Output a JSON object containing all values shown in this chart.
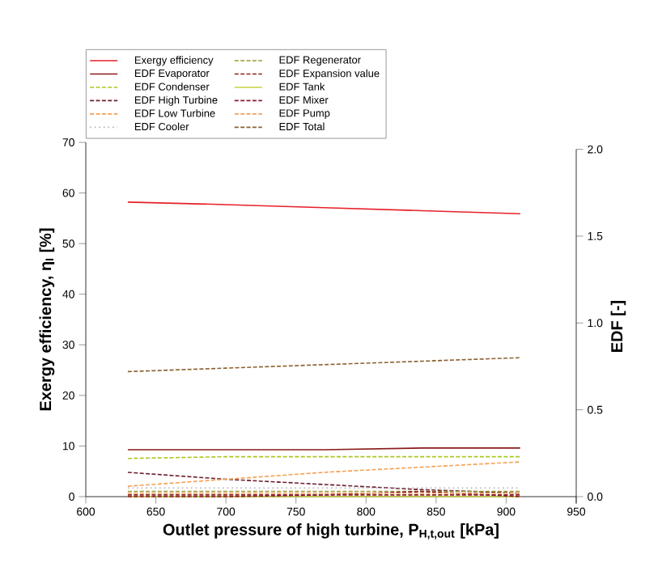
{
  "chart_data": {
    "type": "line",
    "xlabel": "Outlet pressure of high turbine, P$_{H,t,out}$ [kPa]",
    "ylabel": "Exergy efficiency, η$_{I}$ [%]",
    "y2label": "EDF [-]",
    "x": [
      630,
      700,
      770,
      840,
      910
    ],
    "xlim": [
      600,
      950
    ],
    "xticks": [
      600,
      650,
      700,
      750,
      800,
      850,
      900,
      950
    ],
    "ylim": [
      0,
      70
    ],
    "yticks": [
      0,
      10,
      20,
      30,
      40,
      50,
      60,
      70
    ],
    "y2lim": [
      -0.04,
      2.0
    ],
    "y2ticks": [
      {
        "value": 0,
        "label": "0.0"
      },
      {
        "value": 0.5,
        "label": "0.5"
      },
      {
        "value": 1,
        "label": "1.0"
      },
      {
        "value": 1.5,
        "label": "1.5"
      },
      {
        "value": 2,
        "label": "2.0"
      }
    ],
    "legend": "top",
    "grid": false,
    "marker": "none",
    "series": [
      {
        "name": "Exergy efficiency",
        "color": "#e8202a",
        "line_style": "solid",
        "values": [
          58.2,
          57.7,
          57.1,
          56.5,
          55.9
        ]
      },
      {
        "name": "EDF Evaporator",
        "color": "#8b1a1a",
        "line_style": "solid",
        "axis": "y2",
        "values": [
          0.27,
          0.27,
          0.27,
          0.28,
          0.28
        ]
      },
      {
        "name": "EDF Condenser",
        "color": "#a8c820",
        "line_style": "dashed",
        "axis": "y2",
        "values": [
          0.22,
          0.23,
          0.23,
          0.23,
          0.23
        ]
      },
      {
        "name": "EDF High Turbine",
        "color": "#6b1e2e",
        "line_style": "dashed",
        "axis": "y2",
        "values": [
          0.14,
          0.1,
          0.07,
          0.04,
          0.02
        ]
      },
      {
        "name": "EDF Low Turbine",
        "color": "#f5a050",
        "line_style": "dashed",
        "axis": "y2",
        "values": [
          0.06,
          0.1,
          0.14,
          0.17,
          0.2
        ]
      },
      {
        "name": "EDF Cooler",
        "color": "#b0b0b0",
        "line_style": "dotted",
        "axis": "y2",
        "values": [
          0.05,
          0.05,
          0.05,
          0.05,
          0.05
        ]
      },
      {
        "name": "EDF Regenerator",
        "color": "#9a9a30",
        "line_style": "dashed",
        "axis": "y2",
        "values": [
          0.03,
          0.03,
          0.03,
          0.03,
          0.03
        ]
      },
      {
        "name": "EDF Expansion value",
        "color": "#8b2020",
        "line_style": "dashed",
        "axis": "y2",
        "values": [
          0.01,
          0.01,
          0.01,
          0.01,
          0.01
        ]
      },
      {
        "name": "EDF Tank",
        "color": "#c8d040",
        "line_style": "solid",
        "axis": "y2",
        "values": [
          0.0,
          0.0,
          0.0,
          0.0,
          0.0
        ]
      },
      {
        "name": "EDF Mixer",
        "color": "#8b1a30",
        "line_style": "dashed",
        "axis": "y2",
        "values": [
          0.0,
          0.0,
          0.01,
          0.03,
          0.0
        ]
      },
      {
        "name": "EDF Pump",
        "color": "#f0a060",
        "line_style": "dashed",
        "axis": "y2",
        "values": [
          0.02,
          0.02,
          0.02,
          0.02,
          0.02
        ]
      },
      {
        "name": "EDF Total",
        "color": "#8b6030",
        "line_style": "dashed",
        "axis": "y2",
        "values": [
          0.72,
          0.74,
          0.76,
          0.78,
          0.8
        ]
      }
    ]
  }
}
